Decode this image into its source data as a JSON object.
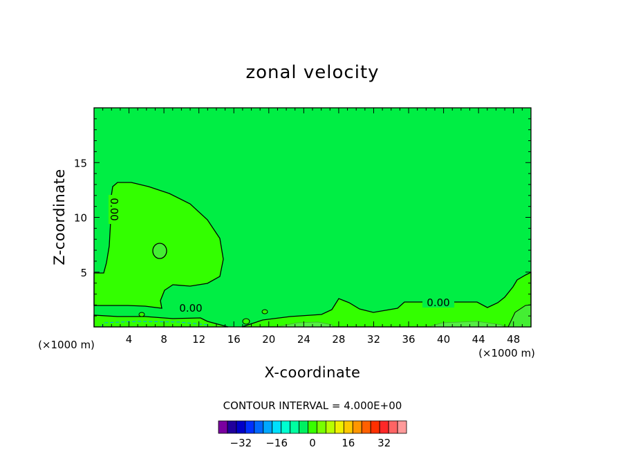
{
  "chart_data": {
    "type": "contour",
    "title": "zonal velocity",
    "xlabel": "X-coordinate",
    "ylabel": "Z-coordinate",
    "x_units": "(×1000 m)",
    "xlim": [
      0,
      50
    ],
    "ylim": [
      0,
      20
    ],
    "x_ticks": [
      4,
      8,
      12,
      16,
      20,
      24,
      28,
      32,
      36,
      40,
      44,
      48
    ],
    "y_ticks": [
      5,
      10,
      15
    ],
    "contour_levels_labeled": [
      "0.00",
      "0.00",
      "0.00"
    ],
    "contour_interval_text": "CONTOUR INTERVAL = 4.000E+00",
    "colorbar": {
      "labels": [
        "-32",
        "-16",
        "0",
        "16",
        "32"
      ],
      "colors": [
        "#7a00a0",
        "#20009c",
        "#0000c8",
        "#0030ff",
        "#0068ff",
        "#00a8ff",
        "#00e0ff",
        "#00ffd0",
        "#00ffa0",
        "#00f060",
        "#38ff00",
        "#78ff00",
        "#b8ff00",
        "#f0f000",
        "#ffc800",
        "#ff9600",
        "#ff6000",
        "#ff3000",
        "#ff2828",
        "#ff6464",
        "#ff9a9a"
      ]
    },
    "field_colors": {
      "background": "#00ee44",
      "positive_region": "#33ff00",
      "weak_positive": "#44ee33"
    }
  }
}
